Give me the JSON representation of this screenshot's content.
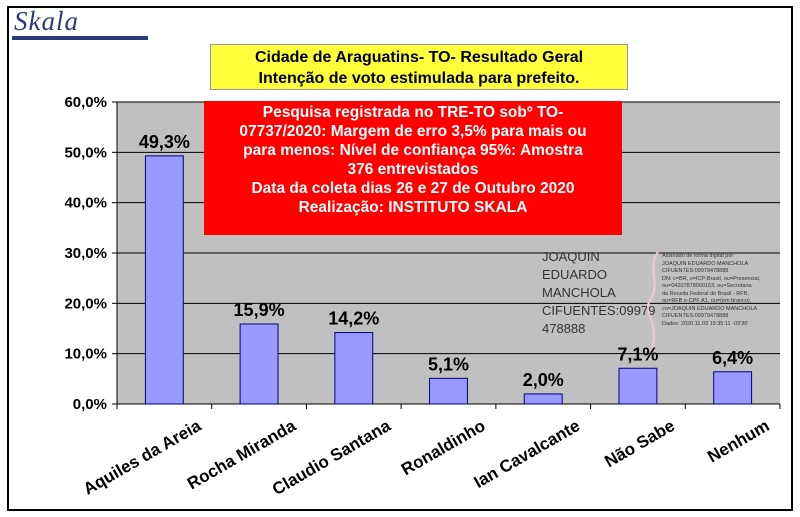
{
  "logo": {
    "text": "Skala"
  },
  "title": {
    "line1": "Cidade de Araguatins- TO- Resultado Geral",
    "line2": "Intenção de voto estimulada para prefeito."
  },
  "info": {
    "lines": [
      "Pesquisa registrada no TRE-TO sobº TO-",
      "07737/2020: Margem de erro 3,5% para mais ou",
      "para menos: Nível de confiança 95%: Amostra",
      "376 entrevistados",
      "Data da coleta dias 26 e 27  de Outubro 2020",
      "Realização: INSTITUTO SKALA"
    ]
  },
  "signature": {
    "name_lines": [
      "JOAQUIN",
      "EDUARDO",
      "MANCHOLA",
      "CIFUENTES:09979",
      "478888"
    ],
    "detail_lines": [
      "Assinado de forma digital por",
      "JOAQUIN EDUARDO MANCHOLA",
      "CIFUENTES:09979478888",
      "DN: c=BR, o=ICP-Brasil, ou=Presencial,",
      "ou=04207878000153, ou=Secretaria",
      "da Receita Federal do Brasil - RFB,",
      "ou=RFB e-CPF A1, ou=(em branco),",
      "cn=JOAQUIN EDUARDO MANCHOLA",
      "CIFUENTES:09979478888",
      "Dados: 2020.11.03 19:35:11 -03'30'"
    ]
  },
  "chart_data": {
    "type": "bar",
    "categories": [
      "Aquiles da Areia",
      "Rocha Miranda",
      "Claudio Santana",
      "Ronaldinho",
      "Ian Cavalcante",
      "Não Sabe",
      "Nenhum"
    ],
    "values": [
      49.3,
      15.9,
      14.2,
      5.1,
      2.0,
      7.1,
      6.4
    ],
    "value_labels": [
      "49,3%",
      "15,9%",
      "14,2%",
      "5,1%",
      "2,0%",
      "7,1%",
      "6,4%"
    ],
    "yticks": [
      "0,0%",
      "10,0%",
      "20,0%",
      "30,0%",
      "40,0%",
      "50,0%",
      "60,0%"
    ],
    "ylim": [
      0,
      60
    ],
    "grid": true,
    "colors": {
      "bar": "#9999ff",
      "plot_bg": "#c0c0c0",
      "bar_stroke": "#000080"
    }
  }
}
